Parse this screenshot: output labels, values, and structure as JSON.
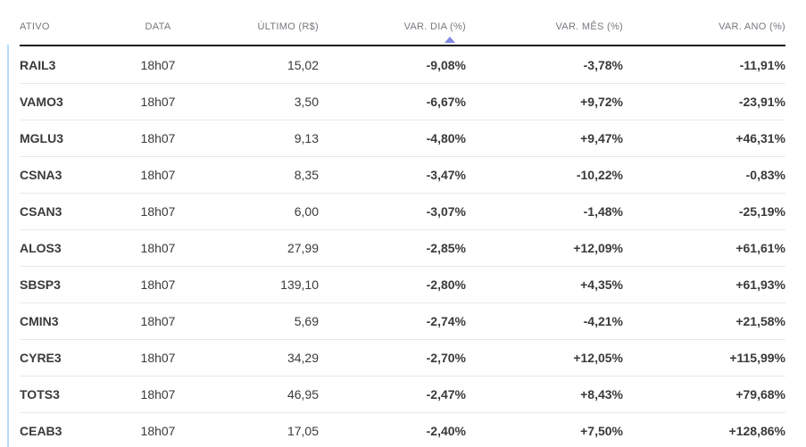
{
  "colors": {
    "ticker": "#2196f3",
    "positive": "#2abb7f",
    "negative": "#ff5252",
    "sort_arrow": "#8288e4",
    "header_text": "#75787e",
    "header_rule": "#1b1b1b",
    "row_divider": "#e9e9e9",
    "value_text": "#3a3a3a",
    "accent_line": "#b8d8f5"
  },
  "table": {
    "columns": [
      {
        "label": "ATIVO"
      },
      {
        "label": "DATA"
      },
      {
        "label": "ÚLTIMO (R$)"
      },
      {
        "label": "VAR. DIA (%)",
        "sorted": "asc"
      },
      {
        "label": "VAR. MÊS (%)"
      },
      {
        "label": "VAR. ANO (%)"
      }
    ],
    "rows": [
      {
        "ticker": "RAIL3",
        "data": "18h07",
        "ultimo": "15,02",
        "var_dia": "-9,08%",
        "var_mes": "-3,78%",
        "var_ano": "-11,91%"
      },
      {
        "ticker": "VAMO3",
        "data": "18h07",
        "ultimo": "3,50",
        "var_dia": "-6,67%",
        "var_mes": "+9,72%",
        "var_ano": "-23,91%"
      },
      {
        "ticker": "MGLU3",
        "data": "18h07",
        "ultimo": "9,13",
        "var_dia": "-4,80%",
        "var_mes": "+9,47%",
        "var_ano": "+46,31%"
      },
      {
        "ticker": "CSNA3",
        "data": "18h07",
        "ultimo": "8,35",
        "var_dia": "-3,47%",
        "var_mes": "-10,22%",
        "var_ano": "-0,83%"
      },
      {
        "ticker": "CSAN3",
        "data": "18h07",
        "ultimo": "6,00",
        "var_dia": "-3,07%",
        "var_mes": "-1,48%",
        "var_ano": "-25,19%"
      },
      {
        "ticker": "ALOS3",
        "data": "18h07",
        "ultimo": "27,99",
        "var_dia": "-2,85%",
        "var_mes": "+12,09%",
        "var_ano": "+61,61%"
      },
      {
        "ticker": "SBSP3",
        "data": "18h07",
        "ultimo": "139,10",
        "var_dia": "-2,80%",
        "var_mes": "+4,35%",
        "var_ano": "+61,93%"
      },
      {
        "ticker": "CMIN3",
        "data": "18h07",
        "ultimo": "5,69",
        "var_dia": "-2,74%",
        "var_mes": "-4,21%",
        "var_ano": "+21,58%"
      },
      {
        "ticker": "CYRE3",
        "data": "18h07",
        "ultimo": "34,29",
        "var_dia": "-2,70%",
        "var_mes": "+12,05%",
        "var_ano": "+115,99%"
      },
      {
        "ticker": "TOTS3",
        "data": "18h07",
        "ultimo": "46,95",
        "var_dia": "-2,47%",
        "var_mes": "+8,43%",
        "var_ano": "+79,68%"
      },
      {
        "ticker": "CEAB3",
        "data": "18h07",
        "ultimo": "17,05",
        "var_dia": "-2,40%",
        "var_mes": "+7,50%",
        "var_ano": "+128,86%"
      }
    ]
  }
}
